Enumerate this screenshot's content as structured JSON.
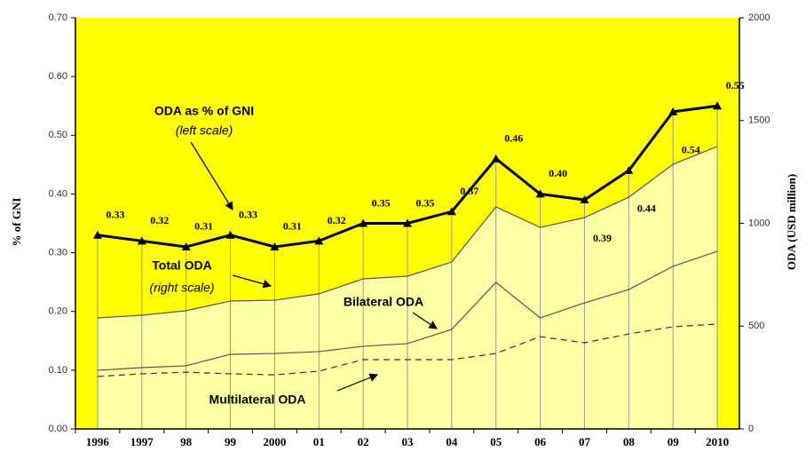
{
  "chart_data": {
    "type": "line",
    "categories": [
      "1996",
      "1997",
      "98",
      "99",
      "2000",
      "01",
      "02",
      "03",
      "04",
      "05",
      "06",
      "07",
      "08",
      "09",
      "2010"
    ],
    "series": [
      {
        "name": "ODA as % of GNI",
        "color": "#000000",
        "axis": "y",
        "values": [
          0.33,
          0.32,
          0.31,
          0.33,
          0.31,
          0.32,
          0.35,
          0.35,
          0.37,
          0.46,
          0.4,
          0.39,
          0.44,
          0.54,
          0.55
        ],
        "value_labels": [
          "0.33",
          "0.32",
          "0.31",
          "0.33",
          "0.31",
          "0.32",
          "0.35",
          "0.35",
          "0.37",
          "0.46",
          "0.40",
          "0.39",
          "0.44",
          "0.54",
          "0.55"
        ]
      },
      {
        "name": "Total ODA",
        "color": "#555555",
        "axis": "y2",
        "values": [
          540,
          553,
          575,
          622,
          626,
          657,
          730,
          743,
          812,
          1080,
          980,
          1028,
          1127,
          1287,
          1374
        ]
      },
      {
        "name": "Bilateral ODA",
        "color": "#555555",
        "axis": "y2",
        "values": [
          285,
          298,
          307,
          363,
          367,
          376,
          402,
          415,
          484,
          713,
          540,
          613,
          678,
          791,
          864
        ]
      },
      {
        "name": "Multilateral ODA",
        "color": "#333333",
        "axis": "y2",
        "dashed": true,
        "values": [
          255,
          268,
          276,
          268,
          263,
          281,
          337,
          337,
          337,
          367,
          449,
          419,
          462,
          497,
          510
        ]
      }
    ],
    "annotations": [
      "(left scale)",
      "(right scale)"
    ],
    "ylabel": "% of GNI",
    "y2label": "ODA (USD million)",
    "ylim": [
      0,
      0.7
    ],
    "yticks": [
      {
        "value": 0,
        "label": "0.00"
      },
      {
        "value": 0.1,
        "label": "0.10"
      },
      {
        "value": 0.2,
        "label": "0.20"
      },
      {
        "value": 0.3,
        "label": "0.30"
      },
      {
        "value": 0.4,
        "label": "0.40"
      },
      {
        "value": 0.5,
        "label": "0.50"
      },
      {
        "value": 0.6,
        "label": "0.60"
      },
      {
        "value": 0.7,
        "label": "0.70"
      }
    ],
    "y2lim": [
      0,
      2000
    ],
    "y2ticks": [
      0,
      500,
      1000,
      1500,
      2000
    ],
    "grid": false
  }
}
